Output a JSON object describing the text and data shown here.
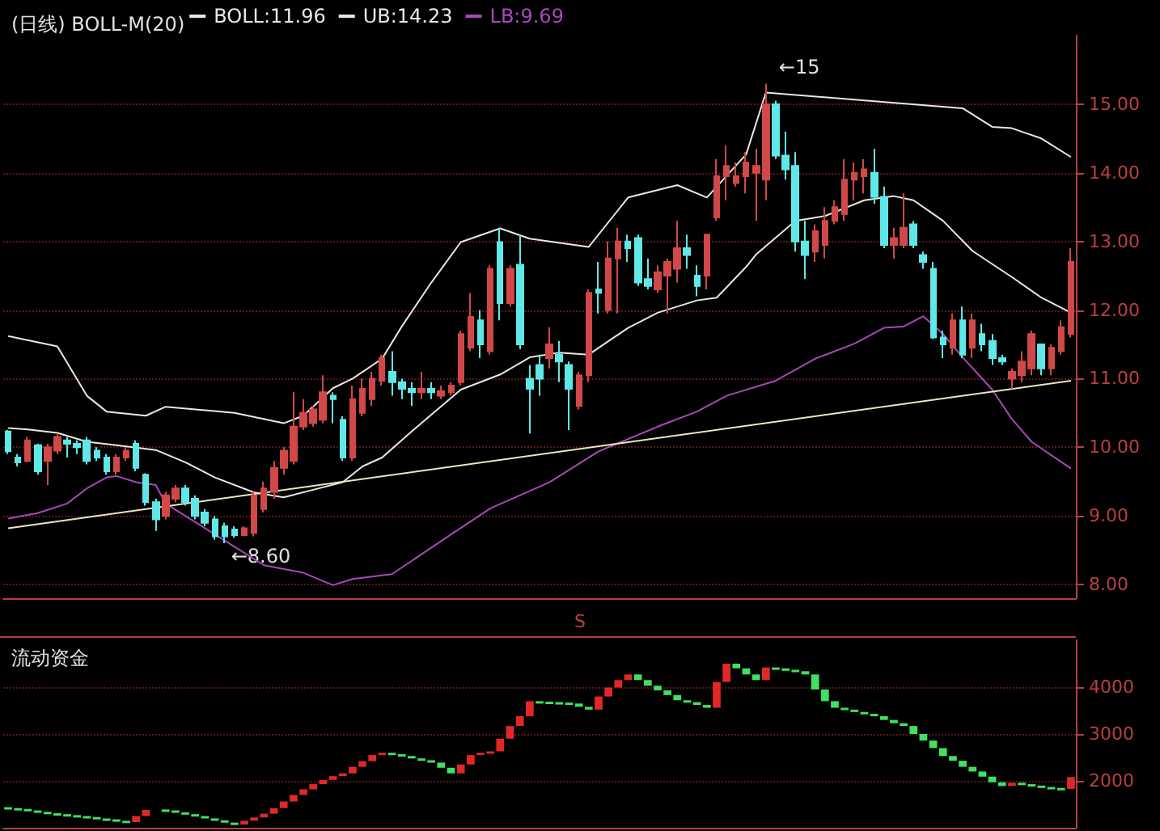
{
  "chart_data": [
    {
      "type": "candlestick",
      "title": "(日线) BOLL-M(20)",
      "categories": [
        null,
        null,
        null,
        null,
        null,
        null,
        null,
        null,
        null,
        null,
        null,
        null,
        null,
        null,
        null,
        null,
        null,
        null,
        null,
        null,
        null,
        null,
        null,
        null,
        null,
        null,
        null,
        null,
        null,
        null,
        null,
        null,
        null,
        null,
        null,
        null,
        null,
        null,
        null,
        null,
        null,
        null,
        null,
        null,
        null,
        null,
        null,
        null,
        null,
        null,
        null,
        null,
        null,
        null,
        null,
        null,
        null,
        null,
        null,
        null,
        null,
        null,
        null,
        null,
        null,
        null,
        null,
        null,
        null,
        null,
        null,
        null,
        null,
        null,
        null,
        null,
        null,
        null,
        null,
        null,
        null,
        null,
        null,
        null,
        null,
        null,
        null,
        null,
        null,
        null,
        null,
        null,
        null,
        null,
        null,
        null,
        null,
        null,
        null,
        null,
        null,
        null,
        null,
        null,
        null,
        null,
        null,
        null,
        null
      ],
      "ohlc": [
        [
          10.23,
          10.25,
          9.9,
          9.94
        ],
        [
          9.85,
          9.9,
          9.72,
          9.78
        ],
        [
          9.8,
          10.15,
          9.78,
          10.1
        ],
        [
          10.03,
          10.05,
          9.6,
          9.65
        ],
        [
          9.8,
          10.05,
          9.45,
          10.0
        ],
        [
          9.95,
          10.2,
          9.9,
          10.15
        ],
        [
          10.1,
          10.15,
          9.85,
          10.05
        ],
        [
          10.05,
          10.1,
          9.9,
          10.0
        ],
        [
          10.1,
          10.15,
          9.75,
          9.8
        ],
        [
          9.95,
          10.0,
          9.8,
          9.85
        ],
        [
          9.85,
          9.9,
          9.6,
          9.65
        ],
        [
          9.65,
          9.9,
          9.6,
          9.85
        ],
        [
          9.85,
          10.0,
          9.8,
          9.95
        ],
        [
          10.05,
          10.1,
          9.65,
          9.7
        ],
        [
          9.6,
          9.62,
          9.15,
          9.2
        ],
        [
          9.2,
          9.25,
          8.78,
          8.95
        ],
        [
          9.0,
          9.35,
          8.95,
          9.3
        ],
        [
          9.25,
          9.45,
          9.2,
          9.4
        ],
        [
          9.4,
          9.45,
          9.15,
          9.2
        ],
        [
          9.25,
          9.3,
          8.95,
          9.0
        ],
        [
          9.05,
          9.1,
          8.85,
          8.9
        ],
        [
          8.95,
          9.0,
          8.65,
          8.7
        ],
        [
          8.85,
          8.9,
          8.6,
          8.7
        ],
        [
          8.8,
          8.85,
          8.68,
          8.72
        ],
        [
          8.72,
          8.85,
          8.7,
          8.82
        ],
        [
          8.75,
          9.35,
          8.7,
          9.3
        ],
        [
          9.1,
          9.5,
          9.05,
          9.4
        ],
        [
          9.35,
          9.8,
          9.25,
          9.7
        ],
        [
          9.7,
          10.0,
          9.6,
          9.95
        ],
        [
          9.8,
          10.8,
          9.75,
          10.3
        ],
        [
          10.3,
          10.7,
          10.25,
          10.5
        ],
        [
          10.35,
          10.6,
          10.3,
          10.55
        ],
        [
          10.4,
          11.05,
          10.35,
          10.8
        ],
        [
          10.75,
          10.8,
          10.35,
          10.7
        ],
        [
          10.4,
          10.45,
          9.8,
          9.85
        ],
        [
          9.85,
          10.9,
          9.8,
          10.7
        ],
        [
          10.5,
          11.0,
          10.45,
          10.85
        ],
        [
          10.7,
          11.1,
          10.6,
          11.0
        ],
        [
          10.97,
          11.35,
          10.9,
          11.3
        ],
        [
          11.1,
          11.4,
          10.75,
          10.95
        ],
        [
          10.95,
          11.0,
          10.7,
          10.85
        ],
        [
          10.85,
          10.95,
          10.6,
          10.8
        ],
        [
          10.8,
          11.1,
          10.7,
          10.85
        ],
        [
          10.85,
          10.95,
          10.7,
          10.8
        ],
        [
          10.75,
          10.9,
          10.7,
          10.82
        ],
        [
          10.8,
          10.95,
          10.75,
          10.9
        ],
        [
          10.95,
          11.7,
          10.9,
          11.65
        ],
        [
          11.45,
          12.25,
          11.4,
          11.9
        ],
        [
          11.85,
          12.0,
          11.3,
          11.5
        ],
        [
          11.4,
          12.65,
          11.35,
          12.6
        ],
        [
          12.99,
          13.2,
          11.85,
          12.1
        ],
        [
          12.1,
          12.65,
          12.05,
          12.6
        ],
        [
          12.66,
          13.1,
          11.43,
          11.5
        ],
        [
          11.0,
          11.2,
          10.2,
          10.85
        ],
        [
          11.2,
          11.35,
          10.75,
          11.0
        ],
        [
          11.3,
          11.75,
          11.15,
          11.5
        ],
        [
          11.35,
          11.55,
          10.95,
          11.25
        ],
        [
          11.2,
          11.25,
          10.25,
          10.85
        ],
        [
          10.6,
          11.1,
          10.55,
          11.05
        ],
        [
          11.05,
          12.3,
          10.95,
          12.25
        ],
        [
          12.3,
          12.7,
          11.95,
          12.25
        ],
        [
          12.0,
          13.0,
          11.95,
          12.75
        ],
        [
          12.75,
          13.2,
          11.95,
          13.0
        ],
        [
          13.0,
          13.1,
          12.7,
          12.9
        ],
        [
          13.05,
          13.1,
          12.35,
          12.4
        ],
        [
          12.45,
          12.75,
          12.3,
          12.35
        ],
        [
          12.3,
          12.65,
          12.25,
          12.55
        ],
        [
          12.5,
          12.75,
          11.95,
          12.7
        ],
        [
          12.6,
          13.3,
          12.4,
          12.9
        ],
        [
          12.9,
          13.1,
          12.6,
          12.8
        ],
        [
          12.5,
          12.65,
          12.2,
          12.35
        ],
        [
          12.5,
          13.1,
          12.3,
          13.1
        ],
        [
          13.35,
          14.2,
          13.3,
          13.95
        ],
        [
          13.95,
          14.4,
          13.6,
          14.1
        ],
        [
          13.85,
          14.15,
          13.8,
          13.95
        ],
        [
          13.95,
          14.3,
          13.7,
          14.15
        ],
        [
          14.0,
          14.35,
          13.3,
          14.1
        ],
        [
          13.9,
          15.3,
          13.6,
          15.0
        ],
        [
          15.0,
          15.05,
          14.2,
          14.25
        ],
        [
          14.25,
          14.6,
          13.9,
          14.05
        ],
        [
          14.1,
          14.3,
          12.85,
          13.0
        ],
        [
          13.0,
          13.3,
          12.45,
          12.8
        ],
        [
          12.85,
          13.25,
          12.7,
          13.15
        ],
        [
          12.95,
          13.5,
          12.75,
          13.3
        ],
        [
          13.3,
          13.6,
          13.25,
          13.5
        ],
        [
          13.4,
          14.2,
          13.3,
          13.9
        ],
        [
          13.9,
          14.15,
          13.6,
          14.0
        ],
        [
          13.95,
          14.2,
          13.7,
          14.05
        ],
        [
          14.0,
          14.35,
          13.55,
          13.65
        ],
        [
          13.65,
          13.8,
          12.9,
          12.95
        ],
        [
          12.95,
          13.2,
          12.75,
          13.05
        ],
        [
          12.95,
          13.7,
          12.9,
          13.2
        ],
        [
          13.25,
          13.3,
          12.9,
          12.95
        ],
        [
          12.8,
          12.85,
          12.6,
          12.7
        ],
        [
          12.6,
          12.7,
          11.58,
          11.6
        ],
        [
          11.6,
          11.7,
          11.3,
          11.5
        ],
        [
          11.45,
          11.95,
          11.35,
          11.85
        ],
        [
          11.85,
          12.05,
          11.3,
          11.35
        ],
        [
          11.45,
          11.95,
          11.3,
          11.85
        ],
        [
          11.65,
          11.8,
          11.4,
          11.5
        ],
        [
          11.55,
          11.65,
          11.2,
          11.3
        ],
        [
          11.3,
          11.35,
          11.2,
          11.25
        ],
        [
          11.0,
          11.15,
          10.85,
          11.1
        ],
        [
          11.05,
          11.4,
          10.95,
          11.25
        ],
        [
          11.15,
          11.7,
          11.05,
          11.65
        ],
        [
          11.5,
          11.5,
          11.05,
          11.15
        ],
        [
          11.15,
          11.5,
          11.05,
          11.45
        ],
        [
          11.4,
          11.85,
          11.35,
          11.75
        ],
        [
          11.65,
          12.9,
          11.6,
          12.7
        ]
      ],
      "colors": [
        "#60e8e8",
        "#60e8e8",
        "#d04848",
        "#60e8e8",
        "#d04848",
        "#d04848",
        "#60e8e8",
        "#60e8e8",
        "#60e8e8",
        "#60e8e8",
        "#60e8e8",
        "#d04848",
        "#d04848",
        "#60e8e8",
        "#60e8e8",
        "#60e8e8",
        "#d04848",
        "#d04848",
        "#60e8e8",
        "#60e8e8",
        "#60e8e8",
        "#60e8e8",
        "#60e8e8",
        "#60e8e8",
        "#d04848",
        "#d04848",
        "#d04848",
        "#d04848",
        "#d04848",
        "#d04848",
        "#d04848",
        "#d04848",
        "#d04848",
        "#60e8e8",
        "#60e8e8",
        "#d04848",
        "#d04848",
        "#d04848",
        "#d04848",
        "#60e8e8",
        "#60e8e8",
        "#60e8e8",
        "#d04848",
        "#60e8e8",
        "#d04848",
        "#d04848",
        "#d04848",
        "#d04848",
        "#60e8e8",
        "#d04848",
        "#60e8e8",
        "#d04848",
        "#60e8e8",
        "#60e8e8",
        "#60e8e8",
        "#d04848",
        "#60e8e8",
        "#60e8e8",
        "#d04848",
        "#d04848",
        "#60e8e8",
        "#d04848",
        "#d04848",
        "#60e8e8",
        "#60e8e8",
        "#60e8e8",
        "#d04848",
        "#d04848",
        "#d04848",
        "#60e8e8",
        "#60e8e8",
        "#d04848",
        "#d04848",
        "#d04848",
        "#d04848",
        "#d04848",
        "#d04848",
        "#d04848",
        "#60e8e8",
        "#60e8e8",
        "#60e8e8",
        "#60e8e8",
        "#d04848",
        "#d04848",
        "#d04848",
        "#d04848",
        "#d04848",
        "#d04848",
        "#60e8e8",
        "#60e8e8",
        "#d04848",
        "#d04848",
        "#60e8e8",
        "#60e8e8",
        "#60e8e8",
        "#60e8e8",
        "#d04848",
        "#60e8e8",
        "#d04848",
        "#60e8e8",
        "#60e8e8",
        "#60e8e8",
        "#d04848",
        "#d04848",
        "#d04848",
        "#60e8e8",
        "#d04848",
        "#d04848",
        "#d04848"
      ],
      "series": [
        {
          "name": "BOLL:11.96",
          "type": "line",
          "color": "#e8e8e0",
          "values": [
            10.28,
            null,
            10.26,
            null,
            null,
            10.21,
            null,
            null,
            10.08,
            null,
            null,
            10.03,
            null,
            null,
            null,
            9.96,
            null,
            null,
            9.78,
            null,
            null,
            9.56,
            null,
            null,
            null,
            9.34,
            null,
            null,
            9.27,
            null,
            null,
            9.38,
            null,
            null,
            9.49,
            null,
            9.72,
            null,
            9.85,
            null,
            null,
            10.23,
            null,
            null,
            null,
            null,
            10.84,
            null,
            null,
            null,
            11.06,
            null,
            null,
            11.31,
            null,
            null,
            11.38,
            null,
            null,
            11.35,
            null,
            null,
            null,
            11.74,
            null,
            null,
            11.96,
            null,
            null,
            null,
            12.14,
            null,
            12.18,
            null,
            null,
            12.63,
            12.81,
            null,
            null,
            null,
            13.3,
            null,
            null,
            13.37,
            null,
            null,
            null,
            13.6,
            null,
            null,
            13.66,
            null,
            13.6,
            null,
            null,
            13.3,
            null,
            null,
            12.86,
            null,
            null,
            null,
            12.48,
            null,
            null,
            12.18,
            null,
            null,
            11.96
          ]
        },
        {
          "name": "UB:14.23",
          "type": "line",
          "color": "#e8e8e0",
          "values": [
            11.62,
            null,
            null,
            null,
            null,
            11.47,
            null,
            null,
            10.75,
            null,
            10.52,
            null,
            null,
            null,
            10.46,
            null,
            10.59,
            null,
            null,
            null,
            null,
            null,
            null,
            10.5,
            null,
            null,
            null,
            null,
            10.35,
            null,
            10.46,
            null,
            null,
            10.86,
            null,
            11.0,
            null,
            null,
            11.29,
            null,
            11.76,
            null,
            null,
            12.4,
            null,
            null,
            12.99,
            null,
            null,
            null,
            13.19,
            null,
            null,
            13.04,
            null,
            null,
            null,
            null,
            null,
            12.92,
            null,
            null,
            null,
            13.64,
            null,
            null,
            null,
            null,
            13.82,
            null,
            null,
            13.64,
            null,
            null,
            null,
            14.27,
            null,
            15.17,
            null,
            null,
            null,
            null,
            null,
            null,
            null,
            null,
            null,
            null,
            null,
            null,
            null,
            null,
            null,
            null,
            null,
            null,
            null,
            14.94,
            null,
            null,
            14.67,
            null,
            14.65,
            null,
            null,
            14.5,
            null,
            null,
            14.23
          ]
        },
        {
          "name": "LB:9.69",
          "type": "line",
          "color": "#a848b8",
          "values": [
            8.96,
            null,
            null,
            9.04,
            null,
            null,
            9.18,
            null,
            9.4,
            null,
            9.56,
            9.58,
            null,
            9.49,
            null,
            9.45,
            9.18,
            null,
            null,
            null,
            8.82,
            null,
            null,
            8.55,
            null,
            null,
            8.28,
            null,
            null,
            null,
            8.17,
            null,
            null,
            7.99,
            null,
            8.08,
            null,
            null,
            null,
            8.15,
            null,
            null,
            null,
            null,
            null,
            8.73,
            null,
            null,
            null,
            9.11,
            null,
            null,
            null,
            null,
            null,
            9.49,
            null,
            null,
            null,
            null,
            9.94,
            null,
            null,
            null,
            null,
            null,
            10.3,
            null,
            null,
            null,
            10.52,
            null,
            null,
            10.75,
            null,
            null,
            null,
            null,
            10.97,
            null,
            null,
            null,
            11.29,
            null,
            null,
            null,
            11.51,
            null,
            null,
            11.74,
            null,
            11.76,
            null,
            11.91,
            null,
            11.65,
            null,
            11.31,
            null,
            null,
            10.84,
            null,
            10.41,
            null,
            10.08,
            null,
            null,
            null,
            9.69
          ]
        },
        {
          "type": "line",
          "color": "#e8e8c0",
          "values": [
            8.82,
            null,
            null,
            null,
            null,
            null,
            null,
            null,
            null,
            null,
            null,
            null,
            null,
            null,
            null,
            null,
            null,
            null,
            null,
            null,
            null,
            null,
            null,
            null,
            null,
            null,
            null,
            null,
            null,
            null,
            null,
            null,
            null,
            null,
            null,
            null,
            null,
            null,
            null,
            null,
            null,
            null,
            null,
            null,
            null,
            null,
            null,
            null,
            null,
            null,
            null,
            null,
            null,
            null,
            null,
            null,
            null,
            null,
            null,
            null,
            null,
            null,
            null,
            null,
            null,
            null,
            null,
            null,
            null,
            null,
            null,
            null,
            null,
            null,
            null,
            null,
            null,
            null,
            null,
            null,
            null,
            null,
            null,
            null,
            null,
            null,
            null,
            null,
            null,
            null,
            null,
            null,
            null,
            null,
            null,
            null,
            null,
            null,
            null,
            null,
            null,
            null,
            null,
            null,
            null,
            null,
            null,
            null,
            10.97
          ]
        }
      ],
      "ylim": [
        7.8,
        16
      ],
      "yticks": [
        {
          "value": 8,
          "label": "8.00"
        },
        {
          "value": 9,
          "label": "9.00"
        },
        {
          "value": 10,
          "label": "10.00"
        },
        {
          "value": 11,
          "label": "11.00"
        },
        {
          "value": 12,
          "label": "12.00"
        },
        {
          "value": 13,
          "label": "13.00"
        },
        {
          "value": 14,
          "label": "14.00"
        },
        {
          "value": 15,
          "label": "15.00"
        }
      ],
      "grid": "y",
      "legend": "top left",
      "tick_labels": "y",
      "annotations": [
        "←8.60",
        "←15"
      ]
    },
    {
      "type": "bar",
      "title": "流动资金",
      "categories": [
        null,
        null,
        null,
        null,
        null,
        null,
        null,
        null,
        null,
        null,
        null,
        null,
        null,
        null,
        null,
        null,
        null,
        null,
        null,
        null,
        null,
        null,
        null,
        null,
        null,
        null,
        null,
        null,
        null,
        null,
        null,
        null,
        null,
        null,
        null,
        null,
        null,
        null,
        null,
        null,
        null,
        null,
        null,
        null,
        null,
        null,
        null,
        null,
        null,
        null,
        null,
        null,
        null,
        null,
        null,
        null,
        null,
        null,
        null,
        null,
        null,
        null,
        null,
        null,
        null,
        null,
        null,
        null,
        null,
        null,
        null,
        null,
        null,
        null,
        null,
        null,
        null,
        null,
        null,
        null,
        null,
        null,
        null,
        null,
        null,
        null,
        null,
        null,
        null,
        null,
        null,
        null,
        null,
        null,
        null,
        null,
        null,
        null,
        null,
        null,
        null,
        null,
        null,
        null,
        null,
        null,
        null,
        null,
        null
      ],
      "base": [
        1440,
        1420,
        1400,
        1370,
        1340,
        1310,
        1290,
        1270,
        1250,
        1230,
        1200,
        1180,
        1150,
        1120,
        1250,
        null,
        1390,
        1370,
        1330,
        1290,
        1250,
        1200,
        1160,
        1110,
        1070,
        1150,
        1220,
        1300,
        1420,
        1560,
        1700,
        1820,
        1930,
        2020,
        2100,
        2160,
        2300,
        2420,
        2550,
        2600,
        2570,
        2530,
        2480,
        2440,
        2390,
        2280,
        2160,
        2350,
        2550,
        2600,
        2630,
        2900,
        3170,
        3380,
        3700,
        3690,
        3680,
        3670,
        3650,
        3580,
        3520,
        3800,
        3990,
        4150,
        4270,
        4150,
        4030,
        3930,
        3830,
        3720,
        3680,
        3620,
        3560,
        4110,
        4500,
        4400,
        4270,
        4150,
        4420,
        4400,
        4370,
        4340,
        4270,
        3950,
        3700,
        3560,
        3520,
        3470,
        3430,
        3380,
        3300,
        3230,
        3170,
        3000,
        2860,
        2700,
        2530,
        2430,
        2300,
        2200,
        2090,
        1970,
        1890,
        1960,
        1930,
        1900,
        1870,
        1850,
        1830
      ],
      "values": [
        -20,
        -20,
        -30,
        -30,
        -30,
        -20,
        -20,
        -20,
        -20,
        -30,
        -20,
        -30,
        -30,
        130,
        130,
        null,
        -20,
        -40,
        -40,
        -40,
        -50,
        -40,
        -50,
        -40,
        80,
        70,
        80,
        120,
        140,
        140,
        120,
        110,
        90,
        80,
        60,
        140,
        120,
        130,
        50,
        -30,
        -40,
        -50,
        -40,
        -50,
        -110,
        -120,
        190,
        200,
        50,
        30,
        270,
        270,
        210,
        320,
        -10,
        -10,
        -10,
        -20,
        -70,
        -60,
        280,
        190,
        160,
        120,
        -120,
        -120,
        -100,
        -100,
        -110,
        -40,
        -60,
        -60,
        550,
        390,
        -100,
        -130,
        -120,
        270,
        -20,
        -30,
        -30,
        -70,
        -320,
        -250,
        -140,
        -40,
        -50,
        -40,
        -50,
        -80,
        -70,
        -60,
        -170,
        -140,
        -160,
        -170,
        -100,
        -130,
        -100,
        -110,
        -120,
        -80,
        70,
        -30,
        -30,
        -30,
        -20,
        -20,
        250
      ],
      "colors": [
        "#40e060",
        "#40e060",
        "#40e060",
        "#40e060",
        "#40e060",
        "#40e060",
        "#40e060",
        "#40e060",
        "#40e060",
        "#40e060",
        "#40e060",
        "#40e060",
        "#40e060",
        "#e02828",
        "#e02828",
        null,
        "#40e060",
        "#40e060",
        "#40e060",
        "#40e060",
        "#40e060",
        "#40e060",
        "#40e060",
        "#40e060",
        "#e02828",
        "#e02828",
        "#e02828",
        "#e02828",
        "#e02828",
        "#e02828",
        "#e02828",
        "#e02828",
        "#e02828",
        "#e02828",
        "#e02828",
        "#e02828",
        "#e02828",
        "#e02828",
        "#e02828",
        "#40e060",
        "#40e060",
        "#40e060",
        "#40e060",
        "#40e060",
        "#40e060",
        "#40e060",
        "#e02828",
        "#e02828",
        "#e02828",
        "#e02828",
        "#e02828",
        "#e02828",
        "#e02828",
        "#e02828",
        "#40e060",
        "#40e060",
        "#40e060",
        "#40e060",
        "#40e060",
        "#40e060",
        "#e02828",
        "#e02828",
        "#e02828",
        "#e02828",
        "#40e060",
        "#40e060",
        "#40e060",
        "#40e060",
        "#40e060",
        "#40e060",
        "#40e060",
        "#40e060",
        "#e02828",
        "#e02828",
        "#40e060",
        "#40e060",
        "#40e060",
        "#e02828",
        "#40e060",
        "#40e060",
        "#40e060",
        "#40e060",
        "#40e060",
        "#40e060",
        "#40e060",
        "#40e060",
        "#40e060",
        "#40e060",
        "#40e060",
        "#40e060",
        "#40e060",
        "#40e060",
        "#40e060",
        "#40e060",
        "#40e060",
        "#40e060",
        "#40e060",
        "#40e060",
        "#40e060",
        "#40e060",
        "#40e060",
        "#40e060",
        "#e02828",
        "#40e060",
        "#40e060",
        "#40e060",
        "#40e060",
        "#40e060",
        "#e02828"
      ],
      "ylim": [
        1000,
        5000
      ],
      "yticks": [
        2000,
        3000,
        4000
      ],
      "grid": "y",
      "tick_labels": "y",
      "annotations": [
        "S"
      ]
    }
  ]
}
